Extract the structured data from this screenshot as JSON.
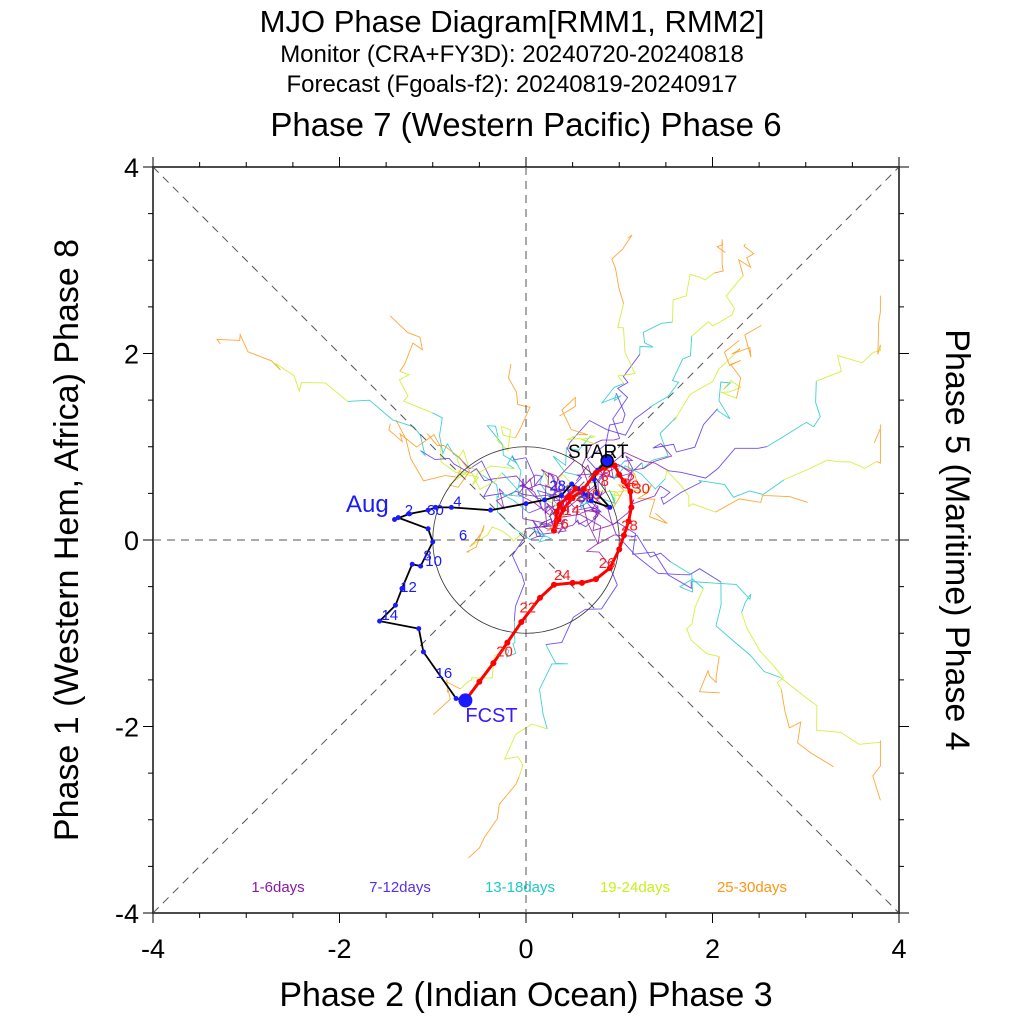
{
  "chart_data": {
    "type": "line",
    "title": "MJO Phase Diagram[RMM1, RMM2]",
    "subtitle_monitor": "Monitor (CRA+FY3D): 20240720-20240818",
    "subtitle_forecast": "Forecast (Fgoals-f2): 20240819-20240917",
    "top_label": "Phase 7 (Western Pacific) Phase 6",
    "xlabel": "Phase 2 (Indian Ocean) Phase 3",
    "ylabel_left": "Phase 1 (Western Hem, Africa) Phase 8",
    "ylabel_right": "Phase 5 (Maritime) Phase 4",
    "xlim": [
      -4,
      4
    ],
    "ylim": [
      -4,
      4
    ],
    "xticks": [
      "-4",
      "-2",
      "0",
      "2",
      "4"
    ],
    "yticks": [
      "4",
      "2",
      "0",
      "-2",
      "-4"
    ],
    "unit_circle_radius": 1,
    "month_label": "Aug",
    "start_label": "START",
    "fcst_label": "FCST",
    "monitor_color": "#000000",
    "monitor_marker_color": "#1a1aff",
    "forecast_color": "#ff0000",
    "monitor": {
      "x": [
        0.87,
        0.77,
        0.73,
        0.76,
        0.9,
        0.7,
        0.66,
        0.61,
        0.56,
        0.49,
        0.38,
        0.2,
        0.0,
        -0.38,
        -0.8,
        -0.97,
        -1.05,
        -1.25,
        -1.41,
        -1.37,
        -1.05,
        -1.0,
        -1.13,
        -1.22,
        -1.33,
        -1.4,
        -1.57,
        -1.15,
        -1.1,
        -0.75,
        -0.65
      ],
      "y": [
        0.85,
        0.75,
        0.65,
        0.5,
        0.35,
        0.42,
        0.48,
        0.5,
        0.55,
        0.6,
        0.48,
        0.43,
        0.39,
        0.32,
        0.35,
        0.35,
        0.32,
        0.28,
        0.22,
        0.24,
        0.12,
        -0.02,
        -0.28,
        -0.26,
        -0.52,
        -0.7,
        -0.87,
        -0.95,
        -1.2,
        -1.7,
        -1.72
      ],
      "day_labels": [
        {
          "text": "28",
          "x": 0.25,
          "y": 0.53
        },
        {
          "text": "30",
          "x": 0.55,
          "y": 0.4
        },
        {
          "text": "2",
          "x": -1.3,
          "y": 0.27
        },
        {
          "text": "30",
          "x": -1.06,
          "y": 0.27
        },
        {
          "text": "4",
          "x": -0.78,
          "y": 0.36
        },
        {
          "text": "6",
          "x": -0.72,
          "y": 0.0
        },
        {
          "text": "8",
          "x": -1.1,
          "y": -0.22
        },
        {
          "text": "10",
          "x": -1.08,
          "y": -0.28
        },
        {
          "text": "12",
          "x": -1.35,
          "y": -0.56
        },
        {
          "text": "14",
          "x": -1.55,
          "y": -0.86
        },
        {
          "text": "16",
          "x": -0.97,
          "y": -1.48
        }
      ]
    },
    "forecast": {
      "x": [
        -0.65,
        -0.5,
        -0.35,
        -0.2,
        -0.05,
        0.15,
        0.3,
        0.5,
        0.6,
        0.75,
        0.9,
        1.0,
        1.05,
        1.1,
        1.13,
        1.12,
        1.05,
        1.0,
        0.95,
        0.85,
        0.75,
        0.62,
        0.5,
        0.4,
        0.35,
        0.3,
        0.33,
        0.36,
        0.45,
        0.53
      ],
      "y": [
        -1.72,
        -1.52,
        -1.32,
        -1.1,
        -0.88,
        -0.62,
        -0.48,
        -0.46,
        -0.46,
        -0.42,
        -0.3,
        -0.1,
        0.05,
        0.2,
        0.35,
        0.52,
        0.63,
        0.7,
        0.8,
        0.78,
        0.72,
        0.55,
        0.45,
        0.33,
        0.22,
        0.1,
        0.3,
        0.38,
        0.46,
        0.55
      ],
      "day_labels": [
        {
          "text": "20",
          "x": -0.32,
          "y": -1.25
        },
        {
          "text": "22",
          "x": -0.07,
          "y": -0.78
        },
        {
          "text": "24",
          "x": 0.3,
          "y": -0.43
        },
        {
          "text": "26",
          "x": 0.78,
          "y": -0.3
        },
        {
          "text": "28",
          "x": 1.02,
          "y": 0.1
        },
        {
          "text": "2",
          "x": 1.08,
          "y": 0.6
        },
        {
          "text": "30",
          "x": 1.15,
          "y": 0.5
        },
        {
          "text": "Se",
          "x": 1.02,
          "y": 0.55
        },
        {
          "text": "6",
          "x": 0.82,
          "y": 0.68
        },
        {
          "text": "8",
          "x": 0.8,
          "y": 0.58
        },
        {
          "text": "10",
          "x": 0.62,
          "y": 0.44
        },
        {
          "text": "12",
          "x": 0.44,
          "y": 0.42
        },
        {
          "text": "14",
          "x": 0.4,
          "y": 0.27
        },
        {
          "text": "16",
          "x": 0.28,
          "y": 0.12
        }
      ]
    },
    "ensemble_legend": [
      {
        "label": "1-6days",
        "color": "#8b18a8"
      },
      {
        "label": "7-12days",
        "color": "#5a2ee6"
      },
      {
        "label": "13-18days",
        "color": "#1ec8c8"
      },
      {
        "label": "19-24days",
        "color": "#c8f01e"
      },
      {
        "label": "25-30days",
        "color": "#ff9614"
      }
    ]
  }
}
